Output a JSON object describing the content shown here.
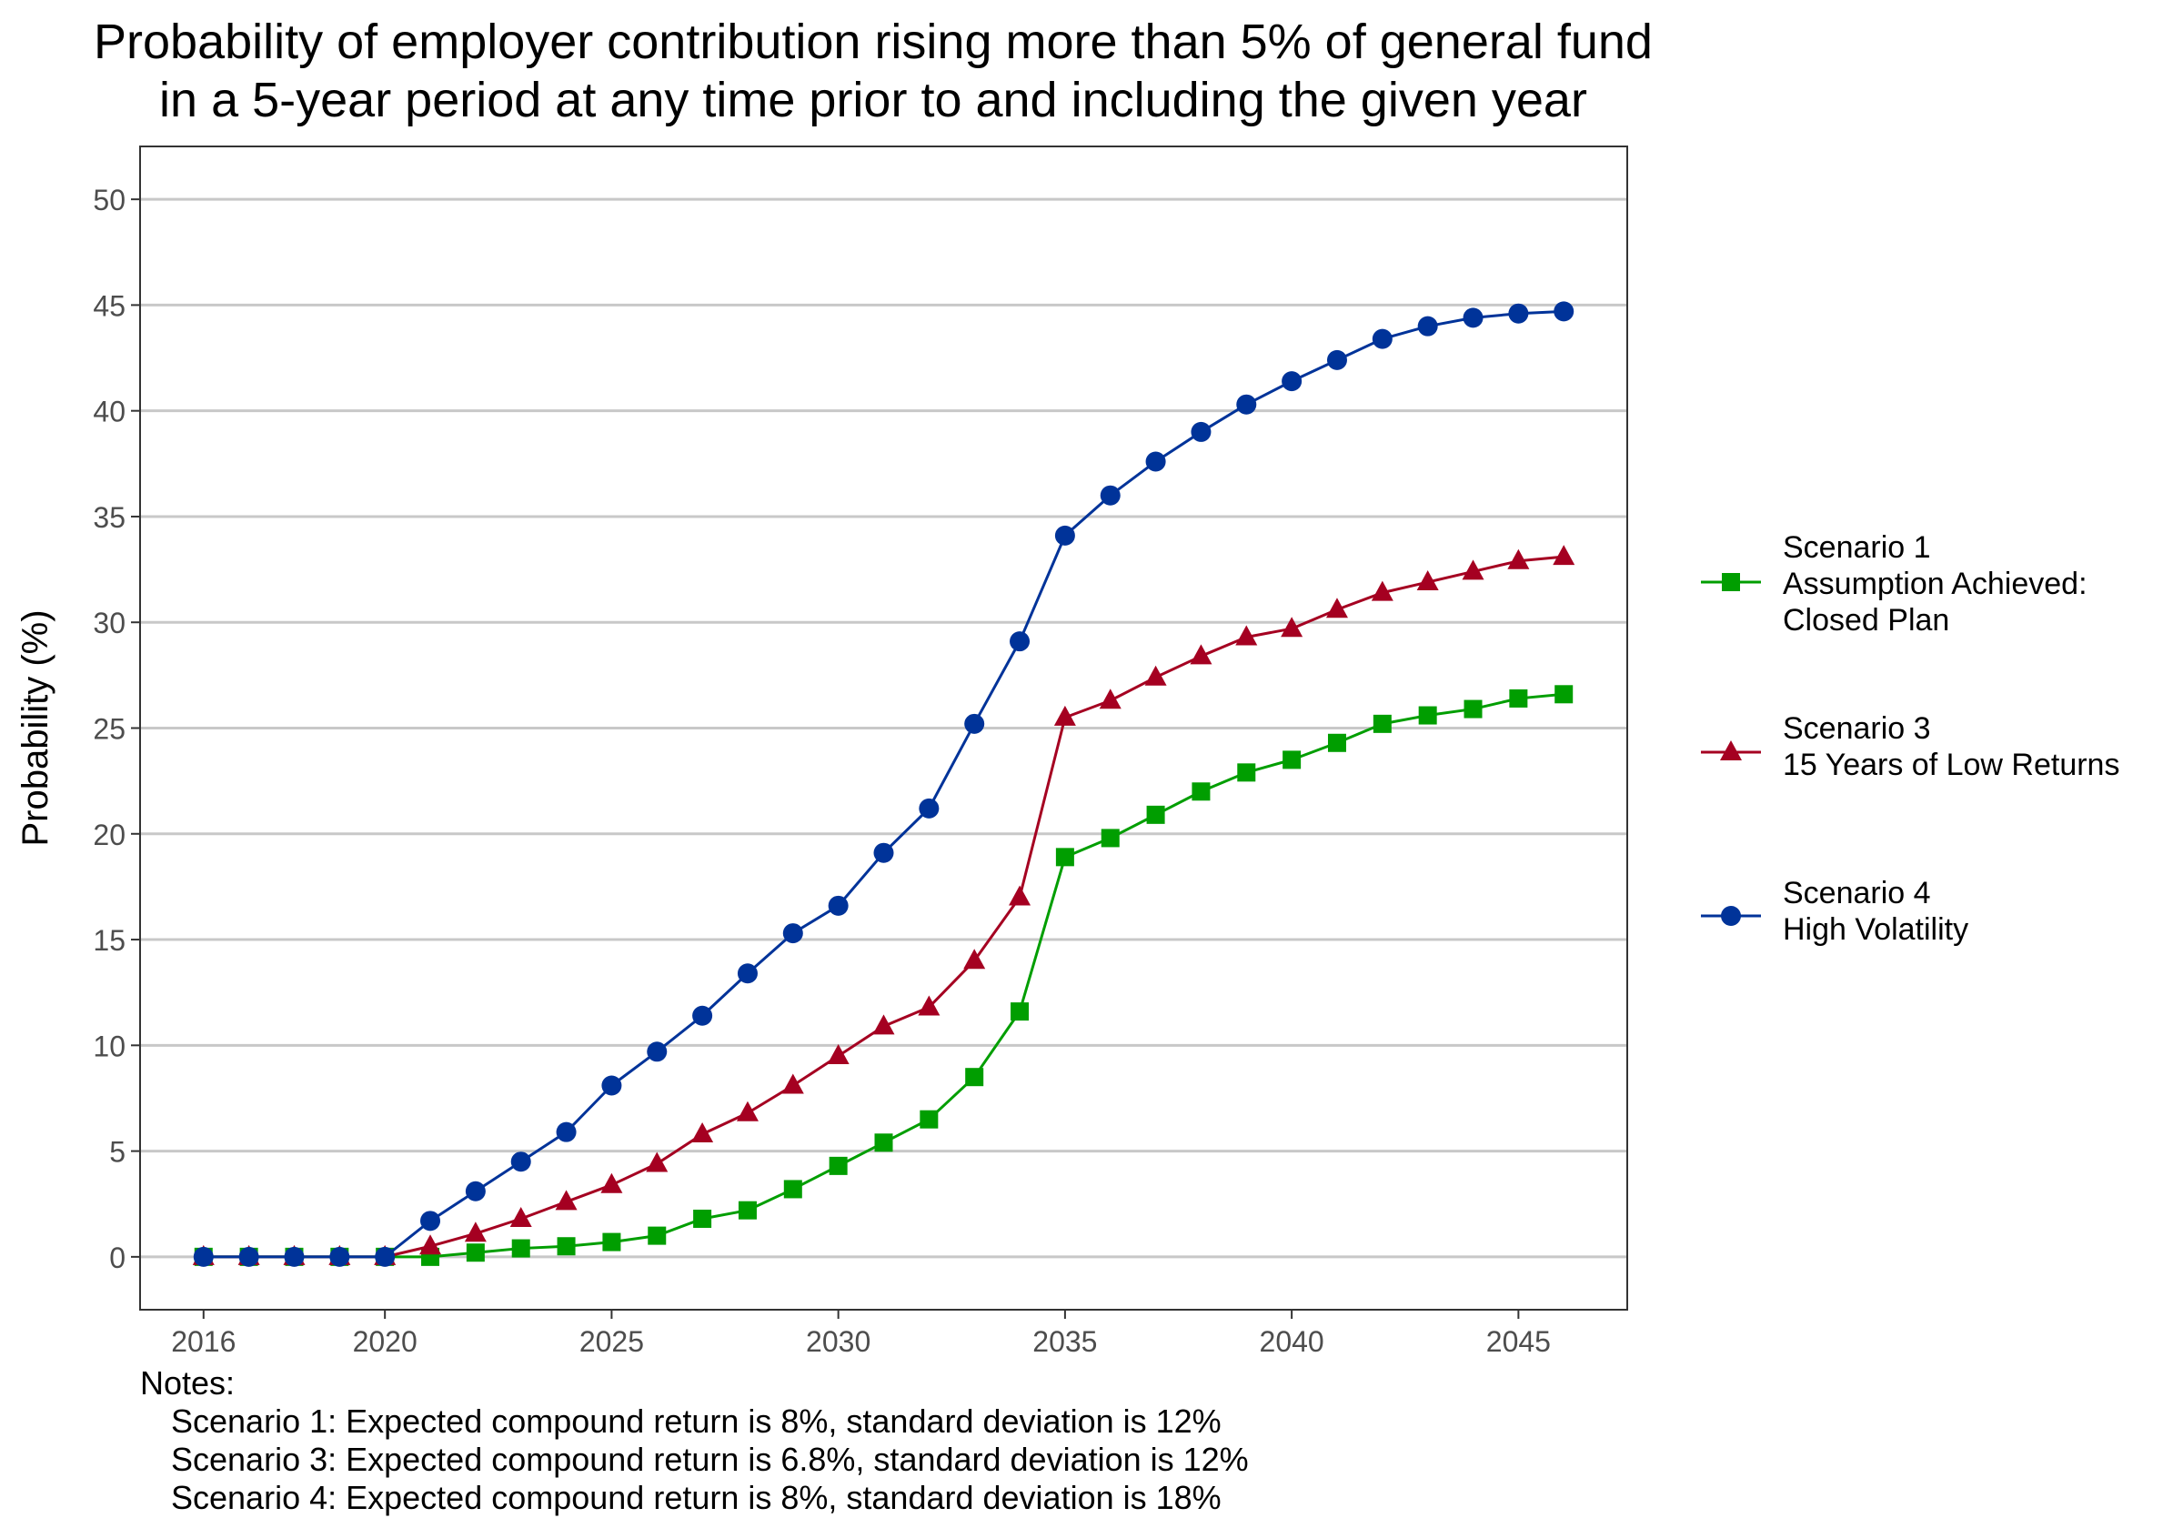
{
  "chart_data": {
    "type": "line",
    "title": [
      "Probability of employer contribution rising more than 5% of general fund",
      "in a 5-year period at any time prior to and including the given year"
    ],
    "xlabel": "",
    "ylabel": "Probability (%)",
    "xlim": [
      2014.6,
      2047.4
    ],
    "ylim": [
      -2.5,
      52.5
    ],
    "xticks": [
      2016,
      2020,
      2025,
      2030,
      2035,
      2040,
      2045
    ],
    "yticks": [
      0,
      5,
      10,
      15,
      20,
      25,
      30,
      35,
      40,
      45,
      50
    ],
    "grid": "horizontal",
    "legend_position": "right",
    "x": [
      2016,
      2017,
      2018,
      2019,
      2020,
      2021,
      2022,
      2023,
      2024,
      2025,
      2026,
      2027,
      2028,
      2029,
      2030,
      2031,
      2032,
      2033,
      2034,
      2035,
      2036,
      2037,
      2038,
      2039,
      2040,
      2041,
      2042,
      2043,
      2044,
      2045,
      2046
    ],
    "series": [
      {
        "name": [
          "Scenario 1",
          "Assumption Achieved:",
          "Closed Plan"
        ],
        "color": "#009E00",
        "marker": "square",
        "values": [
          0,
          0,
          0,
          0,
          0,
          0,
          0.2,
          0.4,
          0.5,
          0.7,
          1.0,
          1.8,
          2.2,
          3.2,
          4.3,
          5.4,
          6.5,
          8.5,
          11.6,
          18.9,
          19.8,
          20.9,
          22.0,
          22.9,
          23.5,
          24.3,
          25.2,
          25.6,
          25.9,
          26.4,
          26.6
        ]
      },
      {
        "name": [
          "Scenario 3",
          "15 Years of Low Returns"
        ],
        "color": "#A50021",
        "marker": "triangle",
        "values": [
          0,
          0,
          0,
          0,
          0,
          0.5,
          1.1,
          1.8,
          2.6,
          3.4,
          4.4,
          5.8,
          6.8,
          8.1,
          9.5,
          10.9,
          11.8,
          14.0,
          17.0,
          25.5,
          26.3,
          27.4,
          28.4,
          29.3,
          29.7,
          30.6,
          31.4,
          31.9,
          32.4,
          32.9,
          33.1
        ]
      },
      {
        "name": [
          "Scenario 4",
          "High Volatility"
        ],
        "color": "#003399",
        "marker": "circle",
        "values": [
          0,
          0,
          0,
          0,
          0,
          1.7,
          3.1,
          4.5,
          5.9,
          8.1,
          9.7,
          11.4,
          13.4,
          15.3,
          16.6,
          19.1,
          21.2,
          25.2,
          29.1,
          34.1,
          36.0,
          37.6,
          39.0,
          40.3,
          41.4,
          42.4,
          43.4,
          44.0,
          44.4,
          44.6,
          44.7
        ]
      }
    ],
    "notes": {
      "heading": "Notes:",
      "lines": [
        "Scenario 1: Expected compound return is 8%, standard deviation is 12%",
        "Scenario 3: Expected compound return is 6.8%, standard deviation is 12%",
        "Scenario 4: Expected compound return is 8%, standard deviation is 18%"
      ]
    }
  }
}
